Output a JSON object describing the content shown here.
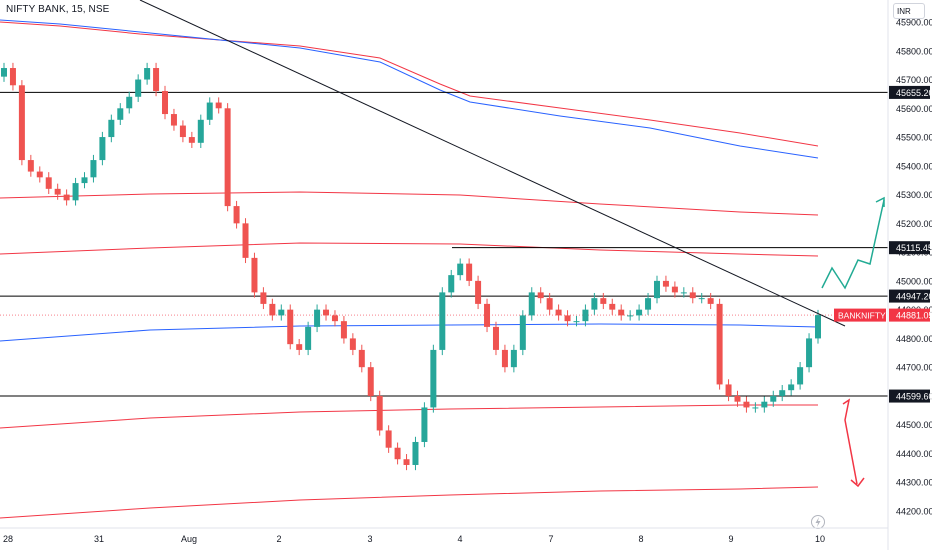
{
  "header": {
    "symbol_title": "NIFTY BANK, 15, NSE"
  },
  "currency_badge": "INR",
  "colors": {
    "up": "#26a69a",
    "down": "#ef5350",
    "ma_red": "#f23645",
    "ma_blue": "#2962ff",
    "level_line": "#000000",
    "arrow_up": "#22ab94",
    "arrow_down": "#f23645"
  },
  "chart_data": {
    "type": "candlestick",
    "title": "NIFTY BANK, 15, NSE",
    "x_tick_labels": [
      "28",
      "31",
      "Aug",
      "2",
      "3",
      "4",
      "7",
      "8",
      "9",
      "10"
    ],
    "y_tick_labels": [
      "45900.00",
      "45800.00",
      "45700.00",
      "45600.00",
      "45500.00",
      "45400.00",
      "45300.00",
      "45200.00",
      "45100.00",
      "45000.00",
      "44900.00",
      "44800.00",
      "44700.00",
      "44600.00",
      "44500.00",
      "44400.00",
      "44300.00",
      "44200.00"
    ],
    "ylim": [
      44150,
      45930
    ],
    "price_labels": [
      {
        "text": "45655.20",
        "kind": "level"
      },
      {
        "text": "45115.45",
        "kind": "level"
      },
      {
        "text": "44947.20",
        "kind": "level"
      },
      {
        "text": "44881.05",
        "kind": "last",
        "name": "BANKNIFTY"
      },
      {
        "text": "44599.60",
        "kind": "level"
      }
    ],
    "horizontal_levels": [
      45655.2,
      45115.45,
      44947.2,
      44599.6
    ],
    "last_price": 44881.05,
    "series": [
      {
        "name": "BANKNIFTY",
        "values": [
          45740,
          45680,
          45420,
          45380,
          45360,
          45320,
          45300,
          45280,
          45340,
          45360,
          45420,
          45500,
          45560,
          45600,
          45640,
          45700,
          45740,
          45660,
          45580,
          45540,
          45500,
          45480,
          45560,
          45620,
          45600,
          45260,
          45200,
          45080,
          44960,
          44920,
          44880,
          44900,
          44780,
          44760,
          44840,
          44900,
          44880,
          44860,
          44800,
          44760,
          44700,
          44600,
          44480,
          44420,
          44380,
          44360,
          44440,
          44560,
          44760,
          44960,
          45020,
          45060,
          45000,
          44920,
          44840,
          44760,
          44700,
          44760,
          44880,
          44960,
          44940,
          44900,
          44880,
          44860,
          44860,
          44900,
          44940,
          44920,
          44900,
          44880,
          44880,
          44900,
          44940,
          45000,
          44980,
          44960,
          44960,
          44940,
          44940,
          44920,
          44640,
          44600,
          44580,
          44560,
          44560,
          44580,
          44600,
          44620,
          44640,
          44700,
          44800,
          44881
        ]
      }
    ]
  },
  "footer_icon": "lightning-icon"
}
